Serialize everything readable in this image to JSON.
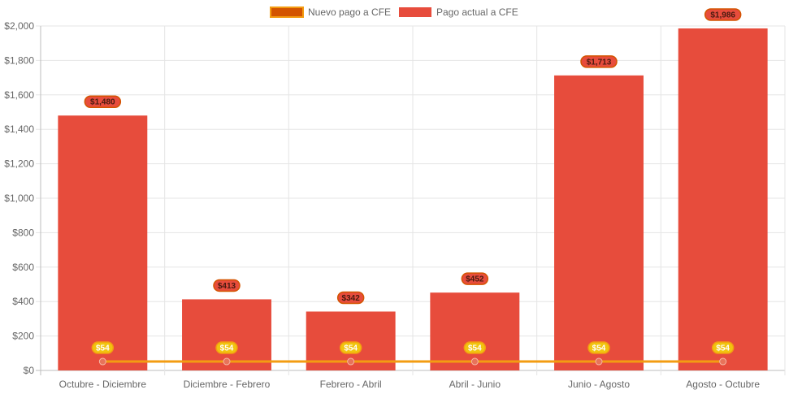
{
  "chart_data": {
    "type": "bar",
    "categories": [
      "Octubre - Diciembre",
      "Diciembre - Febrero",
      "Febrero - Abril",
      "Abril - Junio",
      "Junio - Agosto",
      "Agosto - Octubre"
    ],
    "series": [
      {
        "name": "Nuevo pago a CFE",
        "type": "line",
        "values": [
          54,
          54,
          54,
          54,
          54,
          54
        ],
        "data_labels": [
          "$54",
          "$54",
          "$54",
          "$54",
          "$54",
          "$54"
        ],
        "color": "#f39c12",
        "point_color": "#e8735a",
        "label_color": "#f1c40f"
      },
      {
        "name": "Pago actual a CFE",
        "type": "bar",
        "values": [
          1480,
          413,
          342,
          452,
          1713,
          1986
        ],
        "data_labels": [
          "$1,480",
          "$413",
          "$342",
          "$452",
          "$1,713",
          "$1,986"
        ],
        "color": "#e74c3c",
        "label_color": "#e74c3c"
      }
    ],
    "y_ticks": [
      "$0",
      "$200",
      "$400",
      "$600",
      "$800",
      "$1,000",
      "$1,200",
      "$1,400",
      "$1,600",
      "$1,800",
      "$2,000"
    ],
    "ylim": [
      0,
      2000
    ],
    "grid": true,
    "legend": "top-center",
    "title": "",
    "xlabel": "",
    "ylabel": ""
  }
}
